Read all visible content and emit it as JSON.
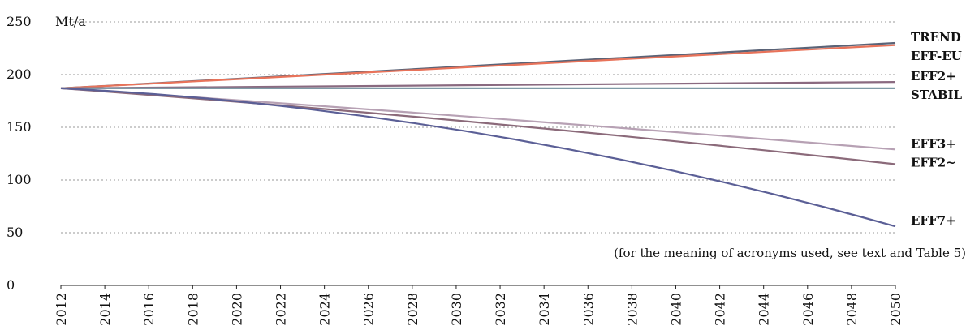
{
  "chart_data": {
    "type": "line",
    "unit_label": "Mt/a",
    "note": "(for the meaning of acronyms used, see text and Table 5)",
    "x": [
      2012,
      2050
    ],
    "x_ticks": [
      "2012",
      "2014",
      "2016",
      "2018",
      "2020",
      "2022",
      "2024",
      "2026",
      "2028",
      "2030",
      "2032",
      "2034",
      "2036",
      "2038",
      "2040",
      "2042",
      "2044",
      "2046",
      "2048",
      "2050"
    ],
    "y_ticks": [
      "0",
      "50",
      "100",
      "150",
      "200",
      "250"
    ],
    "ylim": [
      0,
      250
    ],
    "grid": true,
    "series": [
      {
        "name": "TREND",
        "color": "#5a6377",
        "curve": 0.0,
        "values": [
          187,
          230
        ]
      },
      {
        "name": "EFF-EU",
        "color": "#e8735a",
        "curve": 0.0,
        "values": [
          187,
          228
        ]
      },
      {
        "name": "EFF2+",
        "color": "#8a6a80",
        "curve": 0.0,
        "values": [
          187,
          193
        ]
      },
      {
        "name": "STABIL",
        "color": "#7f9aa6",
        "curve": 0.0,
        "values": [
          187,
          187
        ]
      },
      {
        "name": "EFF3+",
        "color": "#b7a1b4",
        "curve": 0.05,
        "values": [
          187,
          129
        ]
      },
      {
        "name": "EFF2~",
        "color": "#8b6a7a",
        "curve": 0.1,
        "values": [
          187,
          115
        ]
      },
      {
        "name": "EFF7+",
        "color": "#5b5f96",
        "curve": 0.35,
        "values": [
          187,
          56
        ]
      }
    ]
  }
}
